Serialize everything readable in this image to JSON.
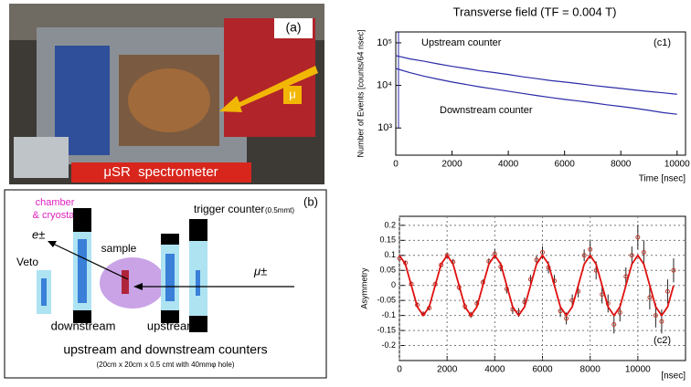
{
  "photo": {
    "label": "(a)",
    "caption": "μSR  spectrometer",
    "beam": "μ"
  },
  "diagram": {
    "label": "(b)",
    "chamber": "chamber",
    "cryostat": "& cryostat",
    "trigger": "trigger counter",
    "trigger_thickness": "(0.5mmt)",
    "sample": "sample",
    "positron": "e±",
    "muon": "μ±",
    "veto": "Veto",
    "downstream": "downstream",
    "upstream": "upstream",
    "caption": "upstream and downstream counters",
    "caption_detail": "(20cm x 20cm x 0.5 cmt with 40mmφ hole)"
  },
  "chart_data": [
    {
      "type": "line",
      "title": "Transverse field (TF = 0.004 T)",
      "panel": "(c1)",
      "xlabel": "Time  [nsec]",
      "ylabel": "Number of Events [counts/64 nsec]",
      "log_y": true,
      "xlim": [
        0,
        10300
      ],
      "ylim": [
        230,
        180000
      ],
      "xticks": [
        0,
        2000,
        4000,
        6000,
        8000,
        10000
      ],
      "yticks": [
        {
          "value": 1000,
          "label": "10³"
        },
        {
          "value": 10000,
          "label": "10⁴"
        },
        {
          "value": 100000,
          "label": "10⁵"
        }
      ],
      "x": [
        0,
        500,
        1000,
        1500,
        2000,
        2500,
        3000,
        3500,
        4000,
        4500,
        5000,
        5500,
        6000,
        6500,
        7000,
        7500,
        8000,
        8500,
        9000,
        9500,
        10000
      ],
      "series": [
        {
          "name": "Upstream counter",
          "color": "#2b2ba8",
          "values": [
            50000,
            42000,
            37000,
            32000,
            28000,
            25000,
            22000,
            20000,
            18000,
            16000,
            14500,
            13000,
            12000,
            11000,
            10000,
            9200,
            8500,
            7800,
            7200,
            6700,
            6200
          ]
        },
        {
          "name": "Downstream counter",
          "color": "#2b2ba8",
          "values": [
            25000,
            20000,
            16500,
            14000,
            12000,
            10500,
            9200,
            8200,
            7300,
            6500,
            5800,
            5200,
            4700,
            4300,
            3900,
            3500,
            3200,
            2900,
            2600,
            2300,
            2100
          ]
        }
      ]
    },
    {
      "type": "scatter",
      "panel": "(c2)",
      "xlabel": "[nsec]",
      "ylabel": "Asymmetry",
      "grid": true,
      "xlim": [
        0,
        12000
      ],
      "ylim": [
        -0.25,
        0.23
      ],
      "xticks": [
        0,
        2000,
        4000,
        6000,
        8000,
        10000
      ],
      "yticks": [
        -0.2,
        -0.15,
        -0.1,
        -0.05,
        0,
        0.05,
        0.1,
        0.15,
        0.2
      ],
      "points": {
        "color": "#c0392b",
        "x": [
          0,
          250,
          500,
          750,
          1000,
          1250,
          1500,
          1750,
          2000,
          2250,
          2500,
          2750,
          3000,
          3250,
          3500,
          3750,
          4000,
          4250,
          4500,
          4750,
          5000,
          5250,
          5500,
          5750,
          6000,
          6250,
          6500,
          6750,
          7000,
          7250,
          7500,
          7750,
          8000,
          8250,
          8500,
          8750,
          9000,
          9250,
          9500,
          9750,
          10000,
          10250,
          10500,
          10750,
          11000,
          11250,
          11500
        ],
        "values": [
          0.09,
          0.075,
          0.005,
          -0.065,
          -0.095,
          -0.075,
          0.004,
          0.068,
          0.1,
          0.078,
          -0.006,
          -0.07,
          -0.098,
          -0.06,
          0.01,
          0.08,
          0.105,
          0.062,
          -0.012,
          -0.08,
          -0.09,
          -0.055,
          0.02,
          0.085,
          0.11,
          0.06,
          0.015,
          -0.085,
          -0.11,
          -0.05,
          -0.02,
          0.1,
          0.12,
          0.05,
          -0.03,
          -0.06,
          -0.13,
          -0.09,
          0.03,
          0.1,
          0.16,
          0.11,
          -0.04,
          -0.1,
          -0.12,
          -0.02,
          0.05
        ],
        "errors": [
          0.008,
          0.008,
          0.008,
          0.008,
          0.008,
          0.008,
          0.008,
          0.008,
          0.01,
          0.01,
          0.01,
          0.01,
          0.01,
          0.01,
          0.01,
          0.01,
          0.015,
          0.015,
          0.015,
          0.015,
          0.015,
          0.015,
          0.015,
          0.015,
          0.02,
          0.02,
          0.02,
          0.02,
          0.02,
          0.02,
          0.02,
          0.02,
          0.03,
          0.03,
          0.03,
          0.03,
          0.03,
          0.03,
          0.03,
          0.03,
          0.04,
          0.04,
          0.04,
          0.04,
          0.04,
          0.04,
          0.04
        ]
      },
      "fit": {
        "color": "#e01010",
        "x": [
          0,
          250,
          500,
          750,
          1000,
          1250,
          1500,
          1750,
          2000,
          2250,
          2500,
          2750,
          3000,
          3250,
          3500,
          3750,
          4000,
          4250,
          4500,
          4750,
          5000,
          5250,
          5500,
          5750,
          6000,
          6250,
          6500,
          6750,
          7000,
          7250,
          7500,
          7750,
          8000,
          8250,
          8500,
          8750,
          9000,
          9250,
          9500,
          9750,
          10000,
          10250,
          10500,
          10750,
          11000,
          11250,
          11500
        ],
        "values": [
          0.1,
          0.071,
          0,
          -0.071,
          -0.1,
          -0.071,
          0,
          0.071,
          0.1,
          0.071,
          0,
          -0.071,
          -0.1,
          -0.071,
          0,
          0.071,
          0.1,
          0.071,
          0,
          -0.071,
          -0.1,
          -0.071,
          0,
          0.071,
          0.1,
          0.071,
          0,
          -0.071,
          -0.1,
          -0.071,
          0,
          0.071,
          0.1,
          0.071,
          0,
          -0.071,
          -0.1,
          -0.071,
          0,
          0.071,
          0.1,
          0.071,
          0,
          -0.071,
          -0.1,
          -0.071,
          0
        ]
      }
    }
  ]
}
